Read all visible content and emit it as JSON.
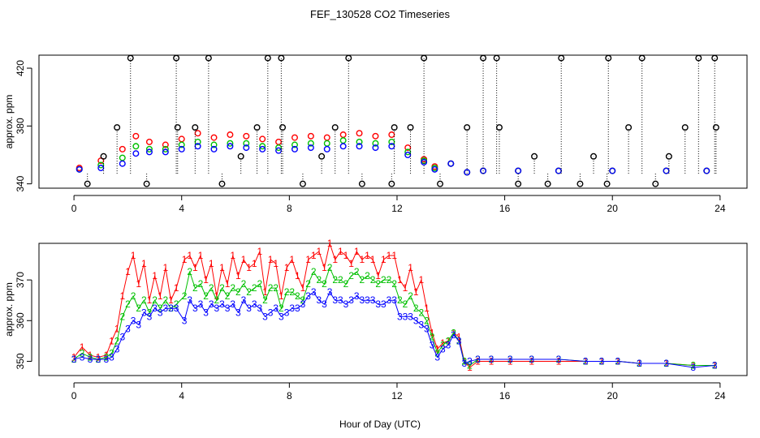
{
  "figure": {
    "title": "FEF_130528  CO2 Timeseries",
    "xlabel": "Hour of Day (UTC)"
  },
  "chart_data": [
    {
      "type": "scatter",
      "title": "FEF_130528  CO2 Timeseries",
      "xlabel": "",
      "ylabel": "approx. ppm",
      "xlim": [
        -1.3,
        25.0
      ],
      "ylim": [
        337,
        429
      ],
      "xticks": [
        0,
        4,
        8,
        12,
        16,
        20,
        24
      ],
      "yticks": [
        340,
        380,
        420
      ],
      "grid": false,
      "legend": null,
      "series": [
        {
          "name": "",
          "marker": "open-circle",
          "color": "#ff0000",
          "x": [
            0.2,
            1.0,
            1.8,
            2.3,
            2.8,
            3.4,
            4.0,
            4.6,
            5.2,
            5.8,
            6.4,
            7.0,
            7.6,
            8.2,
            8.8,
            9.4,
            10.0,
            10.6,
            11.2,
            11.8,
            12.4,
            13.0,
            13.4,
            14.0,
            14.6,
            15.2,
            16.5,
            18.0,
            20.0,
            22.0,
            23.5
          ],
          "y": [
            351,
            356,
            364,
            373,
            369,
            367,
            371,
            375,
            372,
            374,
            373,
            371,
            369,
            372,
            373,
            372,
            374,
            375,
            373,
            374,
            365,
            357,
            352,
            354,
            348,
            349,
            349,
            349,
            349,
            349,
            349
          ]
        },
        {
          "name": "",
          "marker": "open-circle",
          "color": "#00c000",
          "x": [
            0.2,
            1.0,
            1.8,
            2.3,
            2.8,
            3.4,
            4.0,
            4.6,
            5.2,
            5.8,
            6.4,
            7.0,
            7.6,
            8.2,
            8.8,
            9.4,
            10.0,
            10.6,
            11.2,
            11.8,
            12.4,
            13.0,
            13.4,
            14.0,
            14.6,
            15.2,
            16.5,
            18.0,
            20.0,
            22.0,
            23.5
          ],
          "y": [
            350,
            353,
            358,
            366,
            364,
            364,
            367,
            369,
            367,
            368,
            368,
            366,
            365,
            367,
            368,
            368,
            370,
            369,
            368,
            369,
            362,
            356,
            351,
            354,
            348,
            349,
            349,
            349,
            349,
            349,
            349
          ]
        },
        {
          "name": "",
          "marker": "open-circle",
          "color": "#0000ff",
          "x": [
            0.2,
            1.0,
            1.8,
            2.3,
            2.8,
            3.4,
            4.0,
            4.6,
            5.2,
            5.8,
            6.4,
            7.0,
            7.6,
            8.2,
            8.8,
            9.4,
            10.0,
            10.6,
            11.2,
            11.8,
            12.4,
            13.0,
            13.4,
            14.0,
            14.6,
            15.2,
            16.5,
            18.0,
            20.0,
            22.0,
            23.5
          ],
          "y": [
            350,
            351,
            354,
            361,
            362,
            362,
            364,
            366,
            364,
            366,
            365,
            364,
            363,
            364,
            365,
            364,
            366,
            366,
            365,
            366,
            360,
            355,
            350,
            354,
            348,
            349,
            349,
            349,
            349,
            349,
            349
          ]
        },
        {
          "name": "",
          "marker": "open-circle",
          "color": "#000000",
          "x": [
            0.5,
            1.1,
            1.6,
            2.1,
            2.7,
            3.8,
            3.85,
            4.5,
            5.0,
            5.5,
            6.2,
            6.8,
            7.2,
            7.7,
            7.75,
            8.5,
            9.2,
            9.7,
            10.2,
            10.7,
            11.8,
            11.9,
            12.5,
            13.0,
            13.6,
            14.6,
            15.2,
            15.7,
            15.8,
            16.5,
            17.1,
            17.6,
            18.1,
            18.8,
            19.3,
            19.8,
            19.85,
            20.6,
            21.1,
            21.6,
            22.1,
            22.7,
            23.2,
            23.8,
            23.85
          ],
          "y": [
            340,
            359,
            379,
            427,
            340,
            427,
            379,
            379,
            427,
            340,
            359,
            379,
            427,
            427,
            379,
            340,
            359,
            379,
            427,
            340,
            340,
            379,
            379,
            427,
            340,
            379,
            427,
            427,
            379,
            340,
            359,
            340,
            427,
            340,
            359,
            340,
            427,
            379,
            427,
            340,
            359,
            379,
            427,
            427,
            379
          ]
        }
      ]
    },
    {
      "type": "scatter",
      "title": "",
      "xlabel": "Hour of Day (UTC)",
      "ylabel": "approx. ppm",
      "xlim": [
        -1.3,
        25.0
      ],
      "ylim": [
        346.5,
        379
      ],
      "xticks": [
        0,
        4,
        8,
        12,
        16,
        20,
        24
      ],
      "yticks": [
        350,
        360,
        370
      ],
      "grid": false,
      "legend": null,
      "series": [
        {
          "name": "1",
          "marker": "1",
          "color": "#ff0000",
          "x": [
            0.0,
            0.3,
            0.6,
            0.9,
            1.2,
            1.4,
            1.6,
            1.8,
            2.0,
            2.2,
            2.4,
            2.6,
            2.8,
            3.0,
            3.2,
            3.4,
            3.6,
            3.8,
            4.1,
            4.3,
            4.5,
            4.7,
            4.9,
            5.1,
            5.3,
            5.5,
            5.7,
            5.9,
            6.1,
            6.3,
            6.5,
            6.7,
            6.9,
            7.1,
            7.3,
            7.5,
            7.7,
            7.9,
            8.1,
            8.3,
            8.5,
            8.7,
            8.9,
            9.1,
            9.3,
            9.5,
            9.7,
            9.9,
            10.1,
            10.3,
            10.5,
            10.7,
            10.9,
            11.1,
            11.3,
            11.5,
            11.7,
            11.9,
            12.1,
            12.3,
            12.5,
            12.7,
            12.9,
            13.1,
            13.3,
            13.5,
            13.7,
            13.9,
            14.1,
            14.3,
            14.5,
            14.7,
            15.0,
            15.5,
            16.2,
            17.0,
            18.0,
            19.0,
            19.6,
            20.2,
            21.0,
            22.0,
            23.0,
            23.8
          ],
          "y": [
            351,
            353.5,
            351.5,
            351,
            351.5,
            355,
            358,
            366,
            372,
            376,
            369,
            374,
            365,
            371,
            366,
            373,
            365,
            368,
            375,
            376,
            373,
            376,
            370,
            374,
            366,
            373,
            369,
            376,
            371,
            375,
            373,
            374,
            377,
            367,
            375,
            374,
            366,
            373,
            375,
            371,
            368,
            375,
            376,
            377,
            373,
            379,
            375,
            377,
            376,
            374,
            377,
            375,
            376,
            375,
            371,
            375,
            376,
            376,
            370,
            368,
            373,
            367,
            370,
            363,
            357,
            353,
            354.5,
            355,
            357,
            356,
            350,
            348.5,
            350,
            350,
            350,
            350,
            350,
            350,
            350,
            350,
            349.5,
            349.5,
            349,
            349
          ]
        },
        {
          "name": "2",
          "marker": "2",
          "color": "#00c000",
          "x": [
            0.0,
            0.3,
            0.6,
            0.9,
            1.2,
            1.4,
            1.6,
            1.8,
            2.0,
            2.2,
            2.4,
            2.6,
            2.8,
            3.0,
            3.2,
            3.4,
            3.6,
            3.8,
            4.1,
            4.3,
            4.5,
            4.7,
            4.9,
            5.1,
            5.3,
            5.5,
            5.7,
            5.9,
            6.1,
            6.3,
            6.5,
            6.7,
            6.9,
            7.1,
            7.3,
            7.5,
            7.7,
            7.9,
            8.1,
            8.3,
            8.5,
            8.7,
            8.9,
            9.1,
            9.3,
            9.5,
            9.7,
            9.9,
            10.1,
            10.3,
            10.5,
            10.7,
            10.9,
            11.1,
            11.3,
            11.5,
            11.7,
            11.9,
            12.1,
            12.3,
            12.5,
            12.7,
            12.9,
            13.1,
            13.3,
            13.5,
            13.7,
            13.9,
            14.1,
            14.3,
            14.5,
            14.7,
            15.0,
            15.5,
            16.2,
            17.0,
            18.0,
            19.0,
            19.6,
            20.2,
            21.0,
            22.0,
            23.0,
            23.8
          ],
          "y": [
            350.5,
            352,
            351,
            350.5,
            351,
            352,
            355,
            361,
            364,
            366,
            363,
            365,
            362,
            365,
            363,
            365,
            363,
            364,
            366,
            372,
            368,
            369,
            366,
            368,
            365,
            368,
            366,
            368,
            367,
            369,
            367,
            368,
            369,
            365,
            368,
            368,
            363,
            367,
            367,
            366,
            365,
            369,
            372,
            370,
            369,
            373,
            370,
            370,
            369,
            371,
            372,
            370,
            371,
            370,
            369,
            370,
            370,
            369,
            365,
            364,
            366,
            363,
            362,
            360,
            356,
            352,
            354,
            355,
            357,
            355,
            350,
            349,
            350.5,
            350.5,
            350.5,
            350.5,
            350.5,
            350,
            350,
            350,
            349.5,
            349.5,
            349,
            349
          ]
        },
        {
          "name": "3",
          "marker": "3",
          "color": "#0000ff",
          "x": [
            0.0,
            0.3,
            0.6,
            0.9,
            1.2,
            1.4,
            1.6,
            1.8,
            2.0,
            2.2,
            2.4,
            2.6,
            2.8,
            3.0,
            3.2,
            3.4,
            3.6,
            3.8,
            4.1,
            4.3,
            4.5,
            4.7,
            4.9,
            5.1,
            5.3,
            5.5,
            5.7,
            5.9,
            6.1,
            6.3,
            6.5,
            6.7,
            6.9,
            7.1,
            7.3,
            7.5,
            7.7,
            7.9,
            8.1,
            8.3,
            8.5,
            8.7,
            8.9,
            9.1,
            9.3,
            9.5,
            9.7,
            9.9,
            10.1,
            10.3,
            10.5,
            10.7,
            10.9,
            11.1,
            11.3,
            11.5,
            11.7,
            11.9,
            12.1,
            12.3,
            12.5,
            12.7,
            12.9,
            13.1,
            13.3,
            13.5,
            13.7,
            13.9,
            14.1,
            14.3,
            14.5,
            14.7,
            15.0,
            15.5,
            16.2,
            17.0,
            18.0,
            19.0,
            19.6,
            20.2,
            21.0,
            22.0,
            23.0,
            23.8
          ],
          "y": [
            350.5,
            351,
            350.5,
            350.5,
            350.5,
            351,
            353,
            356,
            358,
            360,
            359,
            362,
            361,
            363,
            362,
            363,
            363,
            363,
            360,
            365,
            363,
            364,
            362,
            364,
            363,
            364,
            363,
            364,
            362,
            365,
            363,
            364,
            363,
            361,
            362,
            363,
            361,
            362,
            363,
            363,
            364,
            366,
            367,
            365,
            364,
            367,
            365,
            365,
            364,
            365,
            366,
            365,
            365,
            365,
            364,
            364,
            365,
            365,
            361,
            361,
            361,
            360,
            359,
            358,
            354,
            351,
            353,
            354,
            356.5,
            355,
            349.5,
            350,
            350.5,
            350.5,
            350.5,
            350.5,
            350.5,
            350,
            350,
            350,
            349.5,
            349.5,
            348.5,
            349
          ]
        }
      ]
    }
  ]
}
